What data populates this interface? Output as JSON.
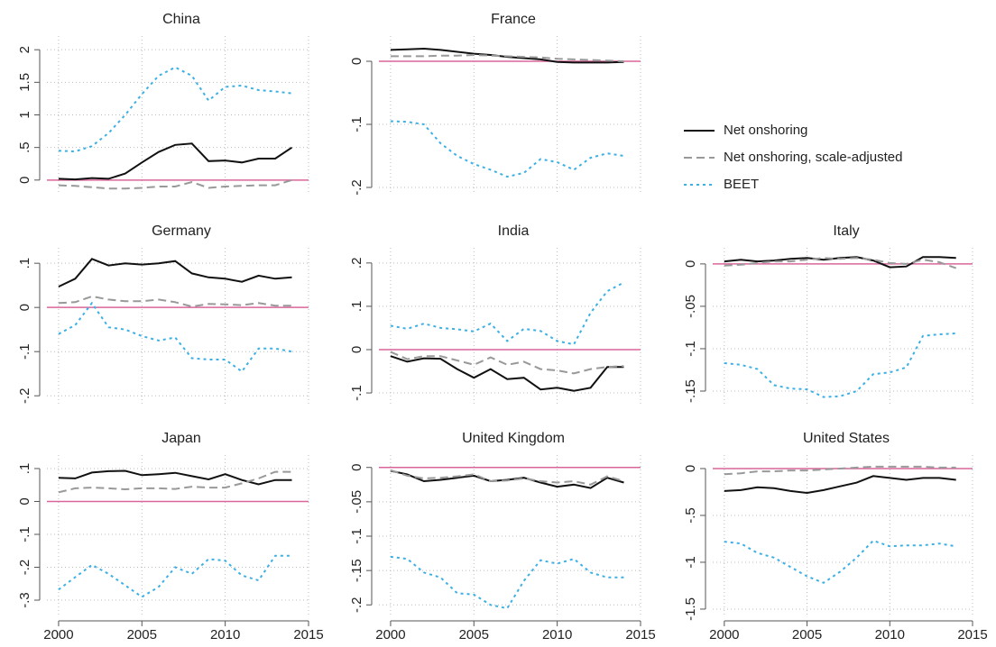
{
  "chart_data": [
    {
      "type": "line",
      "title": "China",
      "x": [
        2000,
        2001,
        2002,
        2003,
        2004,
        2005,
        2006,
        2007,
        2008,
        2009,
        2010,
        2011,
        2012,
        2013,
        2014
      ],
      "xlim": [
        1999.3,
        2015
      ],
      "xticks": [
        2000,
        2005,
        2010,
        2015
      ],
      "ylim": [
        -0.21,
        2.21
      ],
      "yticks": [
        0,
        {
          "value": 0.5,
          "label": ".5"
        },
        1,
        1.5,
        2
      ],
      "grid": true,
      "hline": 0,
      "hline_color": "#d9669b",
      "legend": "right",
      "series": [
        {
          "name": "Net onshoring",
          "color": "#111111",
          "line_style": "solid",
          "values": [
            0.02,
            0.01,
            0.03,
            0.02,
            0.1,
            0.27,
            0.43,
            0.54,
            0.56,
            0.29,
            0.3,
            0.27,
            0.33,
            0.33,
            0.5
          ]
        },
        {
          "name": "Net onshoring, scale-adjusted",
          "color": "#999999",
          "line_style": "dashed",
          "values": [
            -0.08,
            -0.09,
            -0.11,
            -0.13,
            -0.13,
            -0.12,
            -0.1,
            -0.1,
            -0.03,
            -0.12,
            -0.1,
            -0.09,
            -0.08,
            -0.08,
            0
          ]
        },
        {
          "name": "BEET",
          "color": "#3cb0e5",
          "line_style": "dotted",
          "values": [
            0.45,
            0.44,
            0.52,
            0.72,
            1.0,
            1.32,
            1.6,
            1.73,
            1.6,
            1.22,
            1.43,
            1.45,
            1.38,
            1.36,
            1.33
          ]
        }
      ]
    },
    {
      "type": "line",
      "title": "France",
      "x": [
        2000,
        2001,
        2002,
        2003,
        2004,
        2005,
        2006,
        2007,
        2008,
        2009,
        2010,
        2011,
        2012,
        2013,
        2014
      ],
      "xlim": [
        1999.3,
        2015
      ],
      "xticks": [
        2000,
        2005,
        2010,
        2015
      ],
      "ylim": [
        -0.21,
        0.04
      ],
      "yticks": [
        0,
        {
          "value": -0.1,
          "label": "-.1"
        },
        {
          "value": -0.2,
          "label": "-.2"
        }
      ],
      "grid": true,
      "hline": 0,
      "hline_color": "#d9669b",
      "series": [
        {
          "color": "#111111",
          "line_style": "solid",
          "values": [
            0.018,
            0.019,
            0.02,
            0.018,
            0.015,
            0.012,
            0.01,
            0.007,
            0.005,
            0.003,
            -0.001,
            -0.002,
            -0.002,
            -0.002,
            -0.001
          ]
        },
        {
          "color": "#999999",
          "line_style": "dashed",
          "values": [
            0.008,
            0.008,
            0.008,
            0.009,
            0.009,
            0.01,
            0.009,
            0.008,
            0.007,
            0.006,
            0.004,
            0.003,
            0.002,
            0.001,
            0
          ]
        },
        {
          "color": "#3cb0e5",
          "line_style": "dotted",
          "values": [
            -0.095,
            -0.096,
            -0.1,
            -0.13,
            -0.15,
            -0.163,
            -0.172,
            -0.183,
            -0.177,
            -0.155,
            -0.16,
            -0.172,
            -0.153,
            -0.146,
            -0.15
          ]
        }
      ]
    },
    {
      "type": "line",
      "title": "Germany",
      "x": [
        2000,
        2001,
        2002,
        2003,
        2004,
        2005,
        2006,
        2007,
        2008,
        2009,
        2010,
        2011,
        2012,
        2013,
        2014
      ],
      "xlim": [
        1999.3,
        2015
      ],
      "xticks": [
        2000,
        2005,
        2010,
        2015
      ],
      "ylim": [
        -0.222,
        0.135
      ],
      "yticks": [
        {
          "value": 0.1,
          "label": ".1"
        },
        0,
        {
          "value": -0.1,
          "label": "-.1"
        },
        {
          "value": -0.2,
          "label": "-.2"
        }
      ],
      "grid": true,
      "hline": 0,
      "hline_color": "#d9669b",
      "series": [
        {
          "color": "#111111",
          "line_style": "solid",
          "values": [
            0.047,
            0.065,
            0.11,
            0.095,
            0.1,
            0.097,
            0.1,
            0.105,
            0.077,
            0.068,
            0.065,
            0.058,
            0.072,
            0.065,
            0.068
          ]
        },
        {
          "color": "#999999",
          "line_style": "dashed",
          "values": [
            0.01,
            0.012,
            0.025,
            0.018,
            0.014,
            0.014,
            0.018,
            0.012,
            0.002,
            0.008,
            0.007,
            0.005,
            0.01,
            0.004,
            0.004
          ]
        },
        {
          "color": "#3cb0e5",
          "line_style": "dotted",
          "values": [
            -0.06,
            -0.04,
            0.01,
            -0.045,
            -0.05,
            -0.065,
            -0.075,
            -0.068,
            -0.115,
            -0.118,
            -0.118,
            -0.145,
            -0.093,
            -0.093,
            -0.1
          ]
        }
      ]
    },
    {
      "type": "line",
      "title": "India",
      "x": [
        2000,
        2001,
        2002,
        2003,
        2004,
        2005,
        2006,
        2007,
        2008,
        2009,
        2010,
        2011,
        2012,
        2013,
        2014
      ],
      "xlim": [
        1999.3,
        2015
      ],
      "xticks": [
        2000,
        2005,
        2010,
        2015
      ],
      "ylim": [
        -0.129,
        0.235
      ],
      "yticks": [
        {
          "value": 0.2,
          "label": ".2"
        },
        {
          "value": 0.1,
          "label": ".1"
        },
        0,
        {
          "value": -0.1,
          "label": "-.1"
        }
      ],
      "grid": true,
      "hline": 0,
      "hline_color": "#d9669b",
      "series": [
        {
          "color": "#111111",
          "line_style": "solid",
          "values": [
            -0.015,
            -0.028,
            -0.02,
            -0.021,
            -0.045,
            -0.065,
            -0.045,
            -0.068,
            -0.065,
            -0.092,
            -0.088,
            -0.095,
            -0.088,
            -0.04,
            -0.04
          ]
        },
        {
          "color": "#999999",
          "line_style": "dashed",
          "values": [
            -0.005,
            -0.022,
            -0.015,
            -0.015,
            -0.025,
            -0.035,
            -0.018,
            -0.035,
            -0.028,
            -0.045,
            -0.048,
            -0.055,
            -0.045,
            -0.04,
            -0.038
          ]
        },
        {
          "color": "#3cb0e5",
          "line_style": "dotted",
          "values": [
            0.055,
            0.048,
            0.06,
            0.05,
            0.047,
            0.042,
            0.06,
            0.02,
            0.048,
            0.043,
            0.02,
            0.012,
            0.085,
            0.135,
            0.155
          ]
        }
      ]
    },
    {
      "type": "line",
      "title": "Italy",
      "x": [
        2000,
        2001,
        2002,
        2003,
        2004,
        2005,
        2006,
        2007,
        2008,
        2009,
        2010,
        2011,
        2012,
        2013,
        2014
      ],
      "xlim": [
        1999.3,
        2015
      ],
      "xticks": [
        2000,
        2005,
        2010,
        2015
      ],
      "ylim": [
        -0.167,
        0.019
      ],
      "yticks": [
        0,
        {
          "value": -0.05,
          "label": "-.05"
        },
        {
          "value": -0.1,
          "label": "-.1"
        },
        {
          "value": -0.15,
          "label": "-.15"
        }
      ],
      "grid": true,
      "hline": 0,
      "hline_color": "#d9669b",
      "series": [
        {
          "color": "#111111",
          "line_style": "solid",
          "values": [
            0.003,
            0.005,
            0.003,
            0.004,
            0.006,
            0.007,
            0.005,
            0.007,
            0.008,
            0.004,
            -0.004,
            -0.003,
            0.008,
            0.008,
            0.007
          ]
        },
        {
          "color": "#999999",
          "line_style": "dashed",
          "values": [
            -0.002,
            -0.001,
            0.001,
            0.003,
            0.003,
            0.005,
            0.007,
            0.006,
            0.007,
            0.005,
            0.001,
            0,
            0.005,
            0.002,
            -0.005
          ]
        },
        {
          "color": "#3cb0e5",
          "line_style": "dotted",
          "values": [
            -0.117,
            -0.119,
            -0.124,
            -0.143,
            -0.147,
            -0.148,
            -0.157,
            -0.156,
            -0.15,
            -0.13,
            -0.128,
            -0.122,
            -0.085,
            -0.083,
            -0.082
          ]
        }
      ]
    },
    {
      "type": "line",
      "title": "Japan",
      "x": [
        2000,
        2001,
        2002,
        2003,
        2004,
        2005,
        2006,
        2007,
        2008,
        2009,
        2010,
        2011,
        2012,
        2013,
        2014
      ],
      "xlim": [
        1999.3,
        2015
      ],
      "xticks": [
        2000,
        2005,
        2010,
        2015
      ],
      "ylim": [
        -0.352,
        0.141
      ],
      "yticks": [
        {
          "value": 0.1,
          "label": ".1"
        },
        0,
        {
          "value": -0.1,
          "label": "-.1"
        },
        {
          "value": -0.2,
          "label": "-.2"
        },
        {
          "value": -0.3,
          "label": "-.3"
        }
      ],
      "grid": true,
      "hline": 0,
      "hline_color": "#d9669b",
      "series": [
        {
          "color": "#111111",
          "line_style": "solid",
          "values": [
            0.072,
            0.07,
            0.088,
            0.092,
            0.093,
            0.08,
            0.083,
            0.087,
            0.077,
            0.067,
            0.083,
            0.065,
            0.052,
            0.065,
            0.065
          ]
        },
        {
          "color": "#999999",
          "line_style": "dashed",
          "values": [
            0.028,
            0.04,
            0.042,
            0.04,
            0.037,
            0.04,
            0.04,
            0.038,
            0.045,
            0.042,
            0.042,
            0.055,
            0.07,
            0.09,
            0.09
          ]
        },
        {
          "color": "#3cb0e5",
          "line_style": "dotted",
          "values": [
            -0.268,
            -0.23,
            -0.193,
            -0.22,
            -0.255,
            -0.29,
            -0.26,
            -0.2,
            -0.22,
            -0.175,
            -0.18,
            -0.225,
            -0.24,
            -0.165,
            -0.165
          ]
        }
      ]
    },
    {
      "type": "line",
      "title": "United Kingdom",
      "x": [
        2000,
        2001,
        2002,
        2003,
        2004,
        2005,
        2006,
        2007,
        2008,
        2009,
        2010,
        2011,
        2012,
        2013,
        2014
      ],
      "xlim": [
        1999.3,
        2015
      ],
      "xticks": [
        2000,
        2005,
        2010,
        2015
      ],
      "ylim": [
        -0.218,
        0.018
      ],
      "yticks": [
        0,
        {
          "value": -0.05,
          "label": "-.05"
        },
        {
          "value": -0.1,
          "label": "-.1"
        },
        {
          "value": -0.15,
          "label": "-.15"
        },
        {
          "value": -0.2,
          "label": "-.2"
        }
      ],
      "grid": true,
      "hline": 0,
      "hline_color": "#d9669b",
      "series": [
        {
          "color": "#111111",
          "line_style": "solid",
          "values": [
            -0.005,
            -0.01,
            -0.02,
            -0.018,
            -0.015,
            -0.012,
            -0.02,
            -0.018,
            -0.015,
            -0.022,
            -0.028,
            -0.025,
            -0.03,
            -0.015,
            -0.022
          ]
        },
        {
          "color": "#999999",
          "line_style": "dashed",
          "values": [
            -0.004,
            -0.012,
            -0.016,
            -0.015,
            -0.013,
            -0.01,
            -0.02,
            -0.019,
            -0.016,
            -0.02,
            -0.022,
            -0.02,
            -0.025,
            -0.013,
            -0.02
          ]
        },
        {
          "color": "#3cb0e5",
          "line_style": "dotted",
          "values": [
            -0.13,
            -0.133,
            -0.153,
            -0.16,
            -0.183,
            -0.185,
            -0.2,
            -0.205,
            -0.165,
            -0.135,
            -0.14,
            -0.133,
            -0.153,
            -0.16,
            -0.16
          ]
        }
      ]
    },
    {
      "type": "line",
      "title": "United States",
      "x": [
        2000,
        2001,
        2002,
        2003,
        2004,
        2005,
        2006,
        2007,
        2008,
        2009,
        2010,
        2011,
        2012,
        2013,
        2014
      ],
      "xlim": [
        1999.3,
        2015
      ],
      "xticks": [
        2000,
        2005,
        2010,
        2015
      ],
      "ylim": [
        -1.587,
        0.144
      ],
      "yticks": [
        0,
        {
          "value": -0.5,
          "label": "-.5"
        },
        -1,
        -1.5
      ],
      "grid": true,
      "hline": 0,
      "hline_color": "#d9669b",
      "series": [
        {
          "color": "#111111",
          "line_style": "solid",
          "values": [
            -0.24,
            -0.23,
            -0.2,
            -0.21,
            -0.24,
            -0.26,
            -0.23,
            -0.19,
            -0.15,
            -0.08,
            -0.1,
            -0.12,
            -0.1,
            -0.1,
            -0.12
          ]
        },
        {
          "color": "#999999",
          "line_style": "dashed",
          "values": [
            -0.06,
            -0.05,
            -0.03,
            -0.03,
            -0.02,
            -0.02,
            -0.01,
            0,
            0.01,
            0.02,
            0.02,
            0.02,
            0.02,
            0.01,
            0.01
          ]
        },
        {
          "color": "#3cb0e5",
          "line_style": "dotted",
          "values": [
            -0.78,
            -0.8,
            -0.9,
            -0.95,
            -1.05,
            -1.15,
            -1.22,
            -1.1,
            -0.95,
            -0.77,
            -0.83,
            -0.82,
            -0.82,
            -0.8,
            -0.83
          ]
        }
      ]
    }
  ]
}
